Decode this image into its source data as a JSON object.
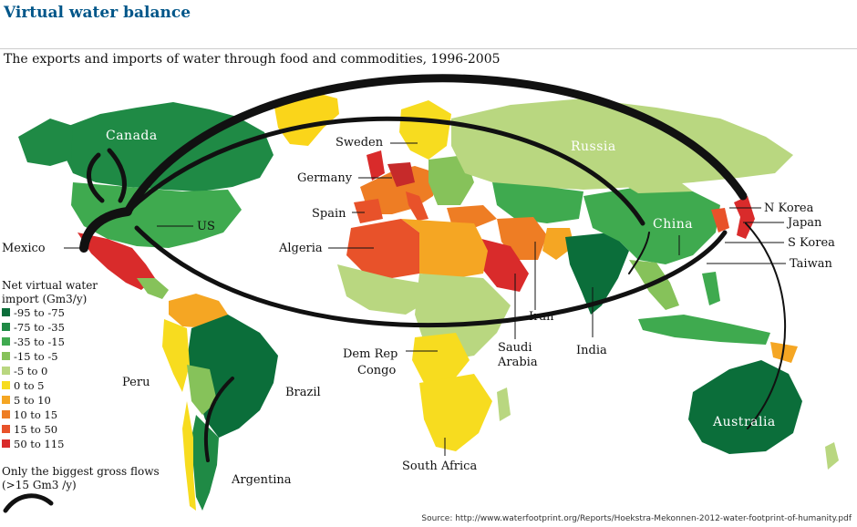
{
  "header": {
    "title": "Virtual water balance",
    "subtitle": "The exports and imports of water through food and commodities, 1996-2005"
  },
  "legend": {
    "title_line1": "Net virtual water",
    "title_line2": "import (Gm3/y)",
    "items": [
      {
        "label": "-95 to -75",
        "color": "#0b6e3a"
      },
      {
        "label": "-75 to -35",
        "color": "#1f8a45"
      },
      {
        "label": "-35 to -15",
        "color": "#3faa4f"
      },
      {
        "label": "-15 to -5",
        "color": "#86c25a"
      },
      {
        "label": "-5 to 0",
        "color": "#b9d780"
      },
      {
        "label": "0 to 5",
        "color": "#f7dc1f"
      },
      {
        "label": "5 to 10",
        "color": "#f5a623"
      },
      {
        "label": "10 to 15",
        "color": "#ee7d24"
      },
      {
        "label": "15 to 50",
        "color": "#e8522a"
      },
      {
        "label": "50 to 115",
        "color": "#d92b2b"
      }
    ],
    "flow_note_line1": "Only the biggest gross flows",
    "flow_note_line2": "(>15 Gm3 /y)"
  },
  "labels": {
    "canada": "Canada",
    "us": "US",
    "mexico": "Mexico",
    "peru": "Peru",
    "brazil": "Brazil",
    "argentina": "Argentina",
    "sweden": "Sweden",
    "germany": "Germany",
    "spain": "Spain",
    "algeria": "Algeria",
    "russia": "Russia",
    "dem_rep_congo_1": "Dem Rep",
    "dem_rep_congo_2": "Congo",
    "south_africa": "South Africa",
    "saudi_1": "Saudi",
    "saudi_2": "Arabia",
    "iran": "Iran",
    "india": "India",
    "china": "China",
    "n_korea": "N Korea",
    "japan": "Japan",
    "s_korea": "S Korea",
    "taiwan": "Taiwan",
    "australia": "Australia"
  },
  "source": "Source:  http://www.waterfootprint.org/Reports/Hoekstra-Mekonnen-2012-water-footprint-of-humanity.pdf"
}
